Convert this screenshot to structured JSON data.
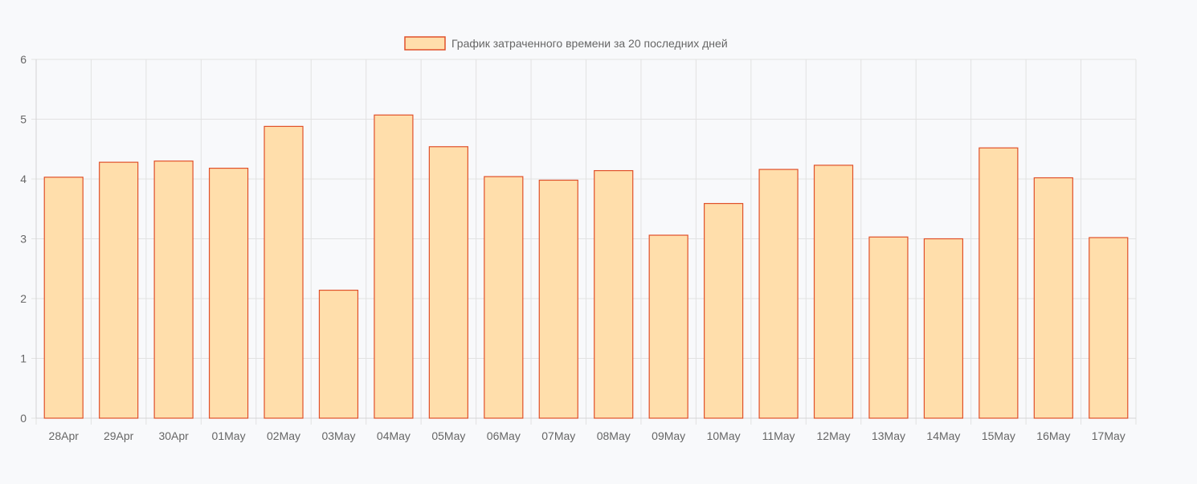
{
  "chart_data": {
    "type": "bar",
    "legend": {
      "label": "График затраченного времени за 20 последних дней",
      "position": "top-center"
    },
    "categories": [
      "28Apr",
      "29Apr",
      "30Apr",
      "01May",
      "02May",
      "03May",
      "04May",
      "05May",
      "06May",
      "07May",
      "08May",
      "09May",
      "10May",
      "11May",
      "12May",
      "13May",
      "14May",
      "15May",
      "16May",
      "17May"
    ],
    "series": [
      {
        "name": "График затраченного времени за 20 последних дней",
        "values": [
          4.03,
          4.28,
          4.3,
          4.18,
          4.88,
          2.14,
          5.07,
          4.54,
          4.04,
          3.98,
          4.14,
          3.06,
          3.59,
          4.16,
          4.23,
          3.03,
          3.0,
          4.52,
          4.02,
          3.02
        ]
      }
    ],
    "yticks": [
      "0",
      "1",
      "2",
      "3",
      "4",
      "5",
      "6"
    ],
    "ylim": [
      0,
      6
    ],
    "grid": true,
    "colors": {
      "bar_fill": "#ffdeab",
      "bar_border": "#e0502a",
      "grid": "#e2e2e2",
      "text": "#666666"
    }
  }
}
